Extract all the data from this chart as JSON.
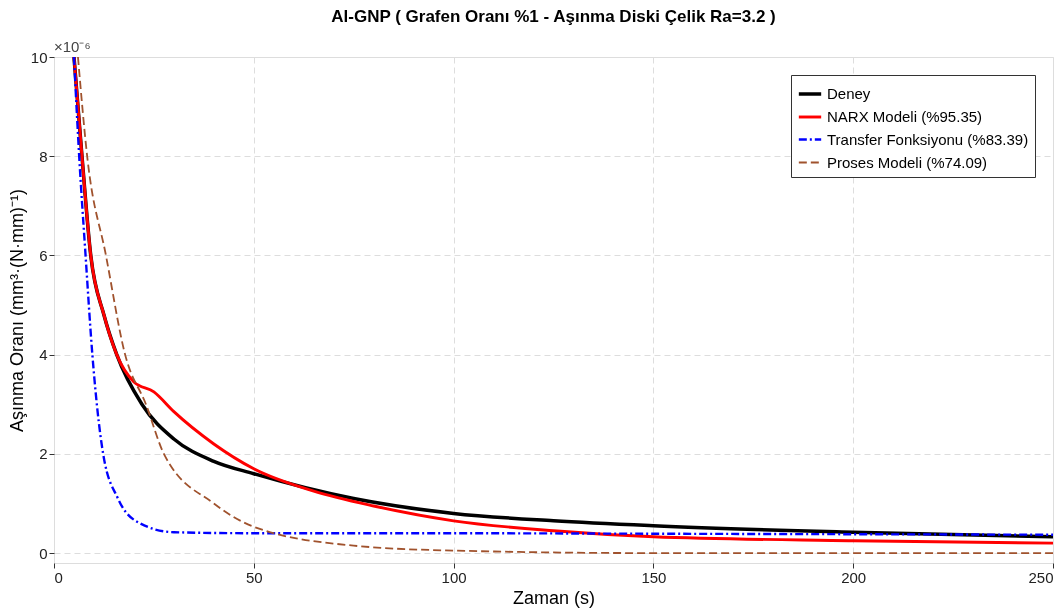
{
  "chart_data": {
    "type": "line",
    "title": "Al-GNP ( Grafen Oranı %1 - Aşınma Diski Çelik Ra=3.2 )",
    "xlabel": "Zaman (s)",
    "ylabel": "Aşınma Oranı (mm³·(N·mm)⁻¹)",
    "annotations": [
      "×10⁻⁶"
    ],
    "xlim": [
      0,
      250
    ],
    "xticks": [
      0,
      50,
      100,
      150,
      200,
      250
    ],
    "ylim": [
      -0.2,
      10
    ],
    "yticks": [
      0,
      2,
      4,
      6,
      8,
      10
    ],
    "grid": true,
    "legend": "top right",
    "marker": "none",
    "series": [
      {
        "name": "Deney",
        "color": "#000000",
        "line_style": "solid",
        "x": [
          5,
          7,
          9.2,
          12.5,
          15.7,
          22,
          30,
          40,
          50,
          75,
          100,
          125,
          150,
          200,
          250
        ],
        "values": [
          10,
          8,
          6,
          4.8,
          4,
          3,
          2.3,
          1.85,
          1.6,
          1.1,
          0.8,
          0.65,
          0.55,
          0.42,
          0.33
        ]
      },
      {
        "name": "NARX Modeli (%95.35)",
        "color": "#ff0000",
        "line_style": "solid",
        "x": [
          5,
          7,
          9.2,
          12.5,
          15.7,
          20,
          25,
          30,
          40,
          50,
          65,
          80,
          100,
          125,
          150,
          200,
          250
        ],
        "values": [
          10,
          8,
          6,
          4.8,
          4,
          3.45,
          3.25,
          2.85,
          2.2,
          1.7,
          1.25,
          0.95,
          0.65,
          0.45,
          0.33,
          0.25,
          0.2
        ]
      },
      {
        "name": "Transfer Fonksiyonu (%83.39)",
        "color": "#0000ff",
        "line_style": "dashdot",
        "x": [
          5,
          6.3,
          7.9,
          9.6,
          12.3,
          16,
          21.5,
          30,
          50,
          100,
          150,
          200,
          250
        ],
        "values": [
          10,
          8,
          6,
          4,
          2,
          1.1,
          0.6,
          0.42,
          0.4,
          0.4,
          0.39,
          0.38,
          0.37
        ]
      },
      {
        "name": "Proses Modeli (%74.09)",
        "color": "#a0522d",
        "line_style": "dashed",
        "x": [
          6,
          8.3,
          13,
          17.8,
          23,
          27.5,
          40,
          50,
          75,
          100,
          150,
          200,
          250
        ],
        "values": [
          10,
          8,
          6,
          4,
          3,
          2,
          1,
          0.53,
          0.15,
          0.05,
          0,
          0,
          0
        ]
      }
    ]
  }
}
